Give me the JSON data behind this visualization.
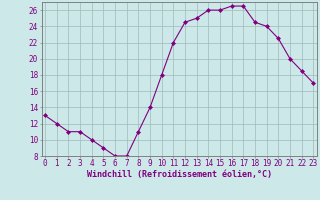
{
  "x": [
    0,
    1,
    2,
    3,
    4,
    5,
    6,
    7,
    8,
    9,
    10,
    11,
    12,
    13,
    14,
    15,
    16,
    17,
    18,
    19,
    20,
    21,
    22,
    23
  ],
  "y": [
    13,
    12,
    11,
    11,
    10,
    9,
    8,
    8,
    11,
    14,
    18,
    22,
    24.5,
    25,
    26,
    26,
    26.5,
    26.5,
    24.5,
    24,
    22.5,
    20,
    18.5,
    17
  ],
  "line_color": "#800080",
  "marker": "D",
  "marker_size": 2.0,
  "bg_color": "#cce8e8",
  "grid_color": "#a0b8b8",
  "xlabel": "Windchill (Refroidissement éolien,°C)",
  "xlabel_fontsize": 6.0,
  "tick_fontsize": 5.5,
  "ylim": [
    8,
    27
  ],
  "yticks": [
    8,
    10,
    12,
    14,
    16,
    18,
    20,
    22,
    24,
    26
  ],
  "xticks": [
    0,
    1,
    2,
    3,
    4,
    5,
    6,
    7,
    8,
    9,
    10,
    11,
    12,
    13,
    14,
    15,
    16,
    17,
    18,
    19,
    20,
    21,
    22,
    23
  ],
  "tick_color": "#800080",
  "spine_color": "#808080",
  "xlim_min": -0.3,
  "xlim_max": 23.3
}
